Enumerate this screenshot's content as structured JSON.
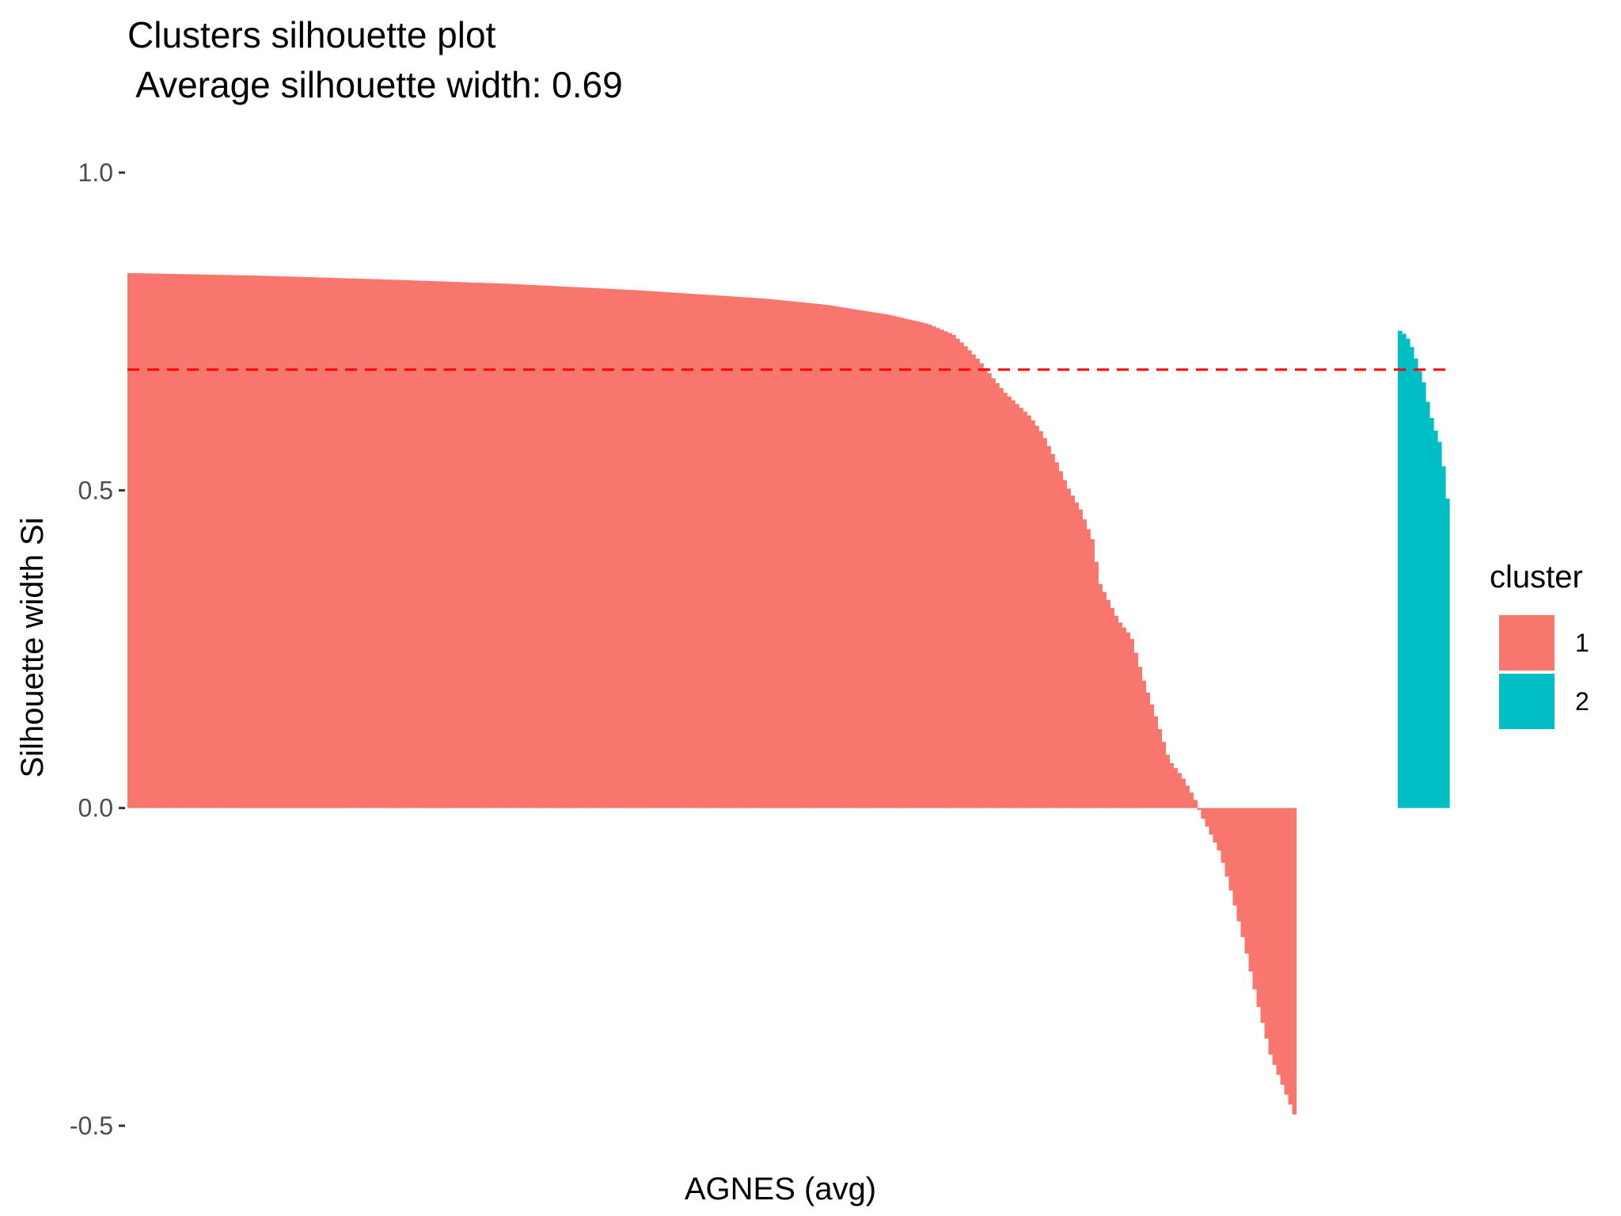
{
  "chart_data": {
    "type": "bar",
    "title": "Clusters silhouette plot",
    "subtitle": " Average silhouette width: 0.69",
    "xlabel": "AGNES (avg)",
    "ylabel": "Silhouette width Si",
    "ylim": [
      -0.5,
      1.0
    ],
    "yticks": [
      {
        "value": -0.5,
        "label": "-0.5"
      },
      {
        "value": 0.0,
        "label": "0.0"
      },
      {
        "value": 0.5,
        "label": "0.5"
      },
      {
        "value": 1.0,
        "label": "1.0"
      }
    ],
    "average_line": {
      "value": 0.69,
      "color": "#ff0000",
      "style": "dashed"
    },
    "grid": false,
    "legend": {
      "title": "cluster",
      "position": "right",
      "entries": [
        {
          "label": "1",
          "color": "#f8766d"
        },
        {
          "label": "2",
          "color": "#00bfc4"
        }
      ]
    },
    "series": [
      {
        "name": "1",
        "color": "#f8766d",
        "profile": [
          [
            0.0,
            0.842
          ],
          [
            0.1,
            0.838
          ],
          [
            0.2,
            0.832
          ],
          [
            0.3,
            0.825
          ],
          [
            0.4,
            0.815
          ],
          [
            0.5,
            0.802
          ],
          [
            0.55,
            0.792
          ],
          [
            0.6,
            0.776
          ],
          [
            0.63,
            0.762
          ],
          [
            0.65,
            0.745
          ],
          [
            0.66,
            0.726
          ],
          [
            0.67,
            0.705
          ],
          [
            0.68,
            0.68
          ],
          [
            0.69,
            0.655
          ],
          [
            0.7,
            0.636
          ],
          [
            0.71,
            0.617
          ],
          [
            0.72,
            0.59
          ],
          [
            0.73,
            0.55
          ],
          [
            0.74,
            0.505
          ],
          [
            0.75,
            0.47
          ],
          [
            0.76,
            0.42
          ],
          [
            0.765,
            0.355
          ],
          [
            0.78,
            0.295
          ],
          [
            0.79,
            0.27
          ],
          [
            0.8,
            0.2
          ],
          [
            0.81,
            0.14
          ],
          [
            0.82,
            0.075
          ],
          [
            0.83,
            0.05
          ],
          [
            0.84,
            0.015
          ],
          [
            0.845,
            -0.01
          ],
          [
            0.86,
            -0.07
          ],
          [
            0.87,
            -0.14
          ],
          [
            0.88,
            -0.22
          ],
          [
            0.89,
            -0.31
          ],
          [
            0.9,
            -0.39
          ],
          [
            0.91,
            -0.44
          ],
          [
            0.92,
            -0.49
          ]
        ]
      },
      {
        "name": "2",
        "color": "#00bfc4",
        "profile": [
          [
            0.0,
            0.753
          ],
          [
            0.1,
            0.748
          ],
          [
            0.2,
            0.738
          ],
          [
            0.3,
            0.72
          ],
          [
            0.4,
            0.693
          ],
          [
            0.5,
            0.67
          ],
          [
            0.6,
            0.63
          ],
          [
            0.7,
            0.6
          ],
          [
            0.8,
            0.58
          ],
          [
            0.9,
            0.53
          ],
          [
            1.0,
            0.46
          ]
        ]
      }
    ]
  }
}
